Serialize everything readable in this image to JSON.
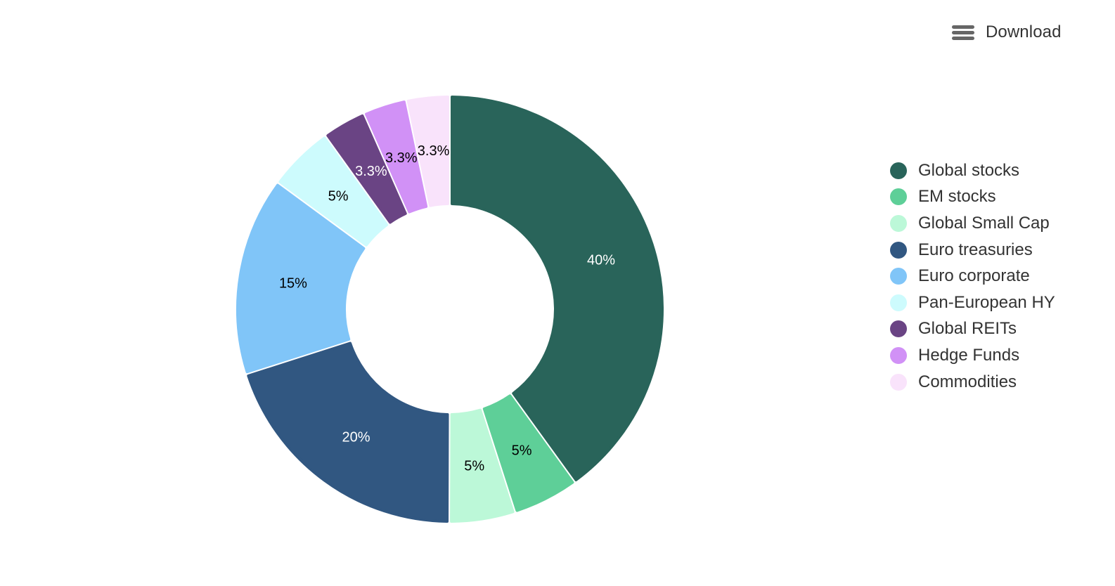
{
  "toolbar": {
    "download_label": "Download",
    "menu_icon": "hamburger-menu-icon"
  },
  "chart_data": {
    "type": "pie",
    "variant": "donut",
    "title": "",
    "legend_position": "right",
    "slices": [
      {
        "label": "Global stocks",
        "value": 40,
        "display": "40%",
        "color": "#29645a",
        "label_color": "#ffffff"
      },
      {
        "label": "EM stocks",
        "value": 5,
        "display": "5%",
        "color": "#5ecf98",
        "label_color": "#000000"
      },
      {
        "label": "Global Small Cap",
        "value": 5,
        "display": "5%",
        "color": "#bcf8d8",
        "label_color": "#000000"
      },
      {
        "label": "Euro treasuries",
        "value": 20,
        "display": "20%",
        "color": "#315781",
        "label_color": "#ffffff"
      },
      {
        "label": "Euro corporate",
        "value": 15,
        "display": "15%",
        "color": "#80c5f8",
        "label_color": "#000000"
      },
      {
        "label": "Pan-European HY",
        "value": 5,
        "display": "5%",
        "color": "#cdfbfd",
        "label_color": "#000000"
      },
      {
        "label": "Global REITs",
        "value": 3.3,
        "display": "3.3%",
        "color": "#6a4484",
        "label_color": "#ffffff"
      },
      {
        "label": "Hedge Funds",
        "value": 3.3,
        "display": "3.3%",
        "color": "#d191f6",
        "label_color": "#000000"
      },
      {
        "label": "Commodities",
        "value": 3.3,
        "display": "3.3%",
        "color": "#f9e3fb",
        "label_color": "#000000"
      }
    ]
  }
}
